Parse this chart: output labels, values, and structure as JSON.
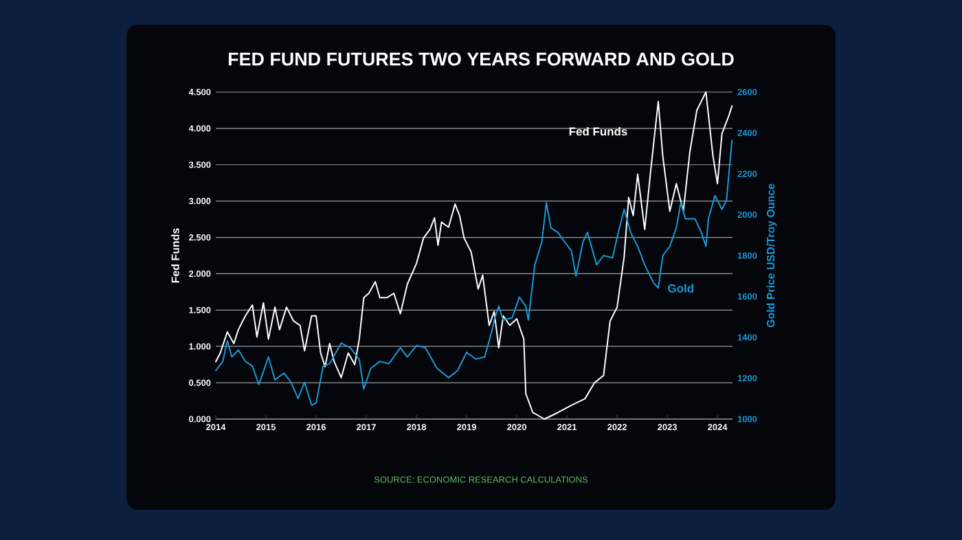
{
  "chart_data": {
    "type": "line",
    "title": "FED FUND FUTURES TWO YEARS FORWARD AND GOLD",
    "ylabel": "Fed Funds",
    "y2label": "Gold Price USD/Troy Ounce",
    "annotations": [
      "SOURCE: ECONOMIC RESEARCH CALCULATIONS"
    ],
    "xlim": [
      2014,
      2024.3
    ],
    "xticks": [
      2014,
      2015,
      2016,
      2017,
      2018,
      2019,
      2020,
      2021,
      2022,
      2023,
      2024
    ],
    "ylim": [
      0,
      4.5
    ],
    "yticks": [
      {
        "value": 0,
        "label": "0.000"
      },
      {
        "value": 0.5,
        "label": "0.500"
      },
      {
        "value": 1,
        "label": "1.000"
      },
      {
        "value": 1.5,
        "label": "1.500"
      },
      {
        "value": 2,
        "label": "2.000"
      },
      {
        "value": 2.5,
        "label": "2.500"
      },
      {
        "value": 3,
        "label": "3.000"
      },
      {
        "value": 3.5,
        "label": "3.500"
      },
      {
        "value": 4,
        "label": "4.000"
      },
      {
        "value": 4.5,
        "label": "4.500"
      }
    ],
    "y2lim": [
      1000,
      2600
    ],
    "y2ticks": [
      1000,
      1200,
      1400,
      1600,
      1800,
      2000,
      2200,
      2400,
      2600
    ],
    "grid": "y",
    "legend": false,
    "marker": "none",
    "line_style": "solid",
    "series": [
      {
        "name": "Fed Funds",
        "color": "#ffffff",
        "x": [
          2014.0,
          2014.09,
          2014.23,
          2014.36,
          2014.45,
          2014.59,
          2014.73,
          2014.82,
          2014.95,
          2015.05,
          2015.18,
          2015.27,
          2015.41,
          2015.55,
          2015.68,
          2015.77,
          2015.91,
          2016.0,
          2016.09,
          2016.18,
          2016.27,
          2016.36,
          2016.5,
          2016.64,
          2016.77,
          2016.86,
          2016.95,
          2017.05,
          2017.18,
          2017.27,
          2017.41,
          2017.55,
          2017.68,
          2017.82,
          2018.0,
          2018.14,
          2018.27,
          2018.36,
          2018.43,
          2018.5,
          2018.64,
          2018.77,
          2018.86,
          2018.95,
          2019.09,
          2019.23,
          2019.32,
          2019.45,
          2019.55,
          2019.64,
          2019.73,
          2019.86,
          2020.0,
          2020.14,
          2020.18,
          2020.32,
          2020.55,
          2020.82,
          2021.09,
          2021.36,
          2021.55,
          2021.73,
          2021.86,
          2022.0,
          2022.14,
          2022.23,
          2022.32,
          2022.41,
          2022.55,
          2022.68,
          2022.82,
          2022.91,
          2023.05,
          2023.18,
          2023.32,
          2023.45,
          2023.59,
          2023.77,
          2023.91,
          2024.0,
          2024.09,
          2024.23,
          2024.29
        ],
        "values": [
          0.79,
          0.91,
          1.2,
          1.04,
          1.23,
          1.42,
          1.57,
          1.13,
          1.6,
          1.1,
          1.54,
          1.23,
          1.54,
          1.35,
          1.29,
          0.94,
          1.42,
          1.42,
          0.91,
          0.72,
          1.04,
          0.79,
          0.57,
          0.91,
          0.75,
          1.1,
          1.67,
          1.73,
          1.89,
          1.67,
          1.67,
          1.73,
          1.45,
          1.86,
          2.14,
          2.49,
          2.61,
          2.77,
          2.39,
          2.71,
          2.64,
          2.96,
          2.8,
          2.49,
          2.3,
          1.79,
          1.98,
          1.29,
          1.48,
          0.98,
          1.42,
          1.29,
          1.38,
          1.1,
          0.35,
          0.09,
          0.0,
          0.09,
          0.19,
          0.28,
          0.5,
          0.6,
          1.35,
          1.54,
          2.23,
          3.05,
          2.8,
          3.37,
          2.61,
          3.49,
          4.37,
          3.62,
          2.86,
          3.24,
          2.86,
          3.68,
          4.25,
          4.5,
          3.62,
          3.24,
          3.93,
          4.18,
          4.31
        ]
      },
      {
        "name": "Gold",
        "color": "#1a9ad6",
        "axis": "y2",
        "x": [
          2014.0,
          2014.14,
          2014.23,
          2014.32,
          2014.45,
          2014.59,
          2014.73,
          2014.86,
          2015.05,
          2015.18,
          2015.36,
          2015.5,
          2015.64,
          2015.77,
          2015.91,
          2016.0,
          2016.14,
          2016.27,
          2016.5,
          2016.68,
          2016.86,
          2016.95,
          2017.09,
          2017.27,
          2017.45,
          2017.68,
          2017.82,
          2018.0,
          2018.18,
          2018.41,
          2018.64,
          2018.82,
          2019.0,
          2019.18,
          2019.36,
          2019.5,
          2019.55,
          2019.64,
          2019.73,
          2019.91,
          2020.05,
          2020.18,
          2020.23,
          2020.36,
          2020.5,
          2020.59,
          2020.68,
          2020.82,
          2020.95,
          2021.09,
          2021.18,
          2021.32,
          2021.41,
          2021.59,
          2021.73,
          2021.91,
          2022.0,
          2022.14,
          2022.27,
          2022.41,
          2022.55,
          2022.73,
          2022.82,
          2022.91,
          2023.05,
          2023.18,
          2023.27,
          2023.36,
          2023.55,
          2023.68,
          2023.77,
          2023.82,
          2023.95,
          2024.09,
          2024.18,
          2024.23,
          2024.29
        ],
        "values": [
          1237,
          1282,
          1383,
          1304,
          1338,
          1282,
          1259,
          1169,
          1304,
          1192,
          1225,
          1180,
          1101,
          1180,
          1068,
          1079,
          1259,
          1271,
          1372,
          1349,
          1293,
          1147,
          1248,
          1282,
          1271,
          1349,
          1304,
          1360,
          1349,
          1248,
          1203,
          1237,
          1327,
          1293,
          1304,
          1428,
          1485,
          1552,
          1485,
          1496,
          1597,
          1552,
          1485,
          1755,
          1868,
          2059,
          1935,
          1913,
          1868,
          1823,
          1699,
          1868,
          1913,
          1755,
          1800,
          1789,
          1890,
          2026,
          1913,
          1845,
          1755,
          1665,
          1642,
          1800,
          1845,
          1935,
          2059,
          1980,
          1980,
          1913,
          1845,
          1980,
          2093,
          2026,
          2070,
          2206,
          2364
        ]
      }
    ]
  }
}
